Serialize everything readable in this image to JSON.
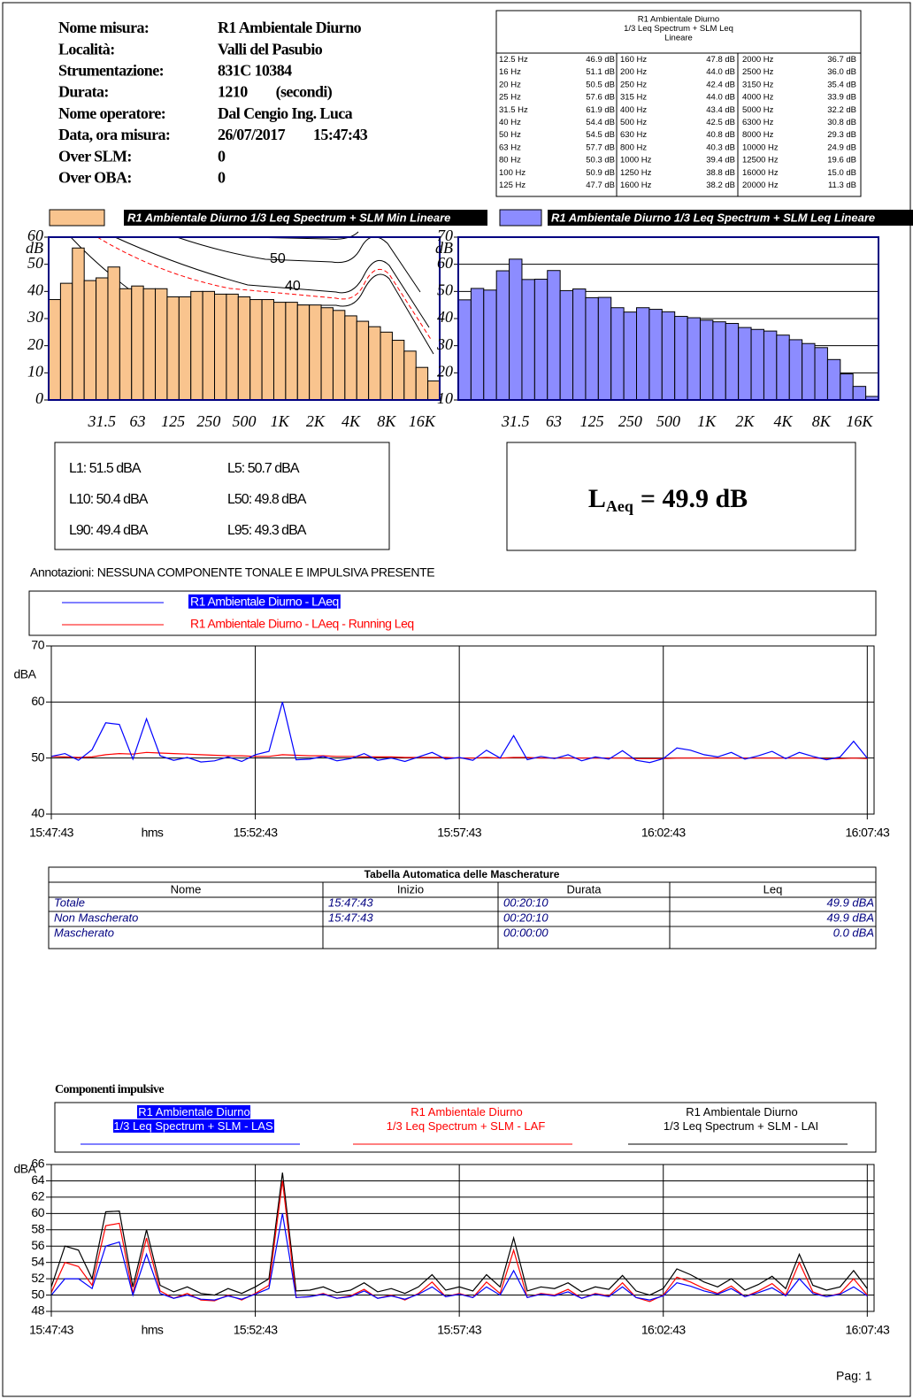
{
  "header": {
    "fields": [
      {
        "label": "Nome misura:",
        "value": "R1 Ambientale Diurno"
      },
      {
        "label": "Località:",
        "value": "Valli del Pasubio"
      },
      {
        "label": "Strumentazione:",
        "value": "831C 10384"
      },
      {
        "label": "Durata:",
        "value": "1210",
        "extra": "(secondi)"
      },
      {
        "label": "Nome operatore:",
        "value": "Dal Cengio Ing. Luca"
      },
      {
        "label": "Data, ora misura:",
        "value": "26/07/2017",
        "extra": "15:47:43"
      },
      {
        "label": "Over SLM:",
        "value": "0"
      },
      {
        "label": "Over OBA:",
        "value": "0"
      }
    ]
  },
  "spectrum_table": {
    "title": [
      "R1 Ambientale Diurno",
      "1/3 Leq Spectrum + SLM Leq",
      "Lineare"
    ],
    "rows": [
      [
        "12.5 Hz",
        "46.9 dB",
        "160 Hz",
        "47.8 dB",
        "2000 Hz",
        "36.7 dB"
      ],
      [
        "16 Hz",
        "51.1 dB",
        "200 Hz",
        "44.0 dB",
        "2500 Hz",
        "36.0 dB"
      ],
      [
        "20 Hz",
        "50.5 dB",
        "250 Hz",
        "42.4 dB",
        "3150 Hz",
        "35.4 dB"
      ],
      [
        "25 Hz",
        "57.6 dB",
        "315 Hz",
        "44.0 dB",
        "4000 Hz",
        "33.9 dB"
      ],
      [
        "31.5 Hz",
        "61.9 dB",
        "400 Hz",
        "43.4 dB",
        "5000 Hz",
        "32.2 dB"
      ],
      [
        "40 Hz",
        "54.4 dB",
        "500 Hz",
        "42.5 dB",
        "6300 Hz",
        "30.8 dB"
      ],
      [
        "50 Hz",
        "54.5 dB",
        "630 Hz",
        "40.8 dB",
        "8000 Hz",
        "29.3 dB"
      ],
      [
        "63 Hz",
        "57.7 dB",
        "800 Hz",
        "40.3 dB",
        "10000 Hz",
        "24.9 dB"
      ],
      [
        "80 Hz",
        "50.3 dB",
        "1000 Hz",
        "39.4 dB",
        "12500 Hz",
        "19.6 dB"
      ],
      [
        "100 Hz",
        "50.9 dB",
        "1250 Hz",
        "38.8 dB",
        "16000 Hz",
        "15.0 dB"
      ],
      [
        "125 Hz",
        "47.7 dB",
        "1600 Hz",
        "38.2 dB",
        "20000 Hz",
        "11.3 dB"
      ]
    ]
  },
  "stats": [
    [
      "L1: 51.5 dBA",
      "L5: 50.7 dBA"
    ],
    [
      "L10: 50.4 dBA",
      "L50: 49.8 dBA"
    ],
    [
      "L90: 49.4 dBA",
      "L95: 49.3 dBA"
    ]
  ],
  "laeq": {
    "symbol": "L",
    "subscript": "Aeq",
    "text": "= 49.9 dB"
  },
  "annotation": "Annotazioni: NESSUNA COMPONENTE TONALE E IMPULSIVA PRESENTE",
  "mask_table": {
    "title": "Tabella Automatica delle Mascherature",
    "headers": [
      "Nome",
      "Inizio",
      "Durata",
      "Leq"
    ],
    "rows": [
      [
        "Totale",
        "15:47:43",
        "00:20:10",
        "49.9 dBA"
      ],
      [
        "Non Mascherato",
        "15:47:43",
        "00:20:10",
        "49.9 dBA"
      ],
      [
        "Mascherato",
        null,
        "00:00:00",
        "0.0 dBA"
      ]
    ]
  },
  "section_title": "Componenti impulsive",
  "page": "Pag: 1",
  "chart_data": [
    {
      "type": "bar",
      "ylabel": "dB",
      "ylim": [
        0,
        60
      ],
      "yticks": [
        0,
        10,
        20,
        30,
        40,
        50,
        60
      ],
      "grid": false,
      "categories": [
        null,
        null,
        null,
        null,
        "31.5",
        null,
        null,
        "63",
        null,
        null,
        "125",
        null,
        null,
        "250",
        null,
        null,
        "500",
        null,
        null,
        "1K",
        null,
        null,
        "2K",
        null,
        null,
        "4K",
        null,
        null,
        "8K",
        null,
        null,
        "16K",
        null
      ],
      "annotations": [
        "50",
        "40"
      ],
      "series": [
        {
          "name": "R1 Ambientale Diurno 1/3 Leq Spectrum + SLM Min Lineare",
          "color": "#f9c48e",
          "values": [
            37,
            43,
            56,
            44,
            45,
            49,
            41,
            42,
            41,
            41,
            38,
            38,
            40,
            40,
            39,
            39,
            38,
            37,
            37,
            36,
            36,
            35,
            35,
            34,
            33,
            31,
            29,
            27,
            25,
            22,
            18,
            12,
            7
          ]
        }
      ]
    },
    {
      "type": "bar",
      "ylabel": "dB",
      "ylim": [
        10,
        70
      ],
      "yticks": [
        10,
        20,
        30,
        40,
        50,
        60,
        70
      ],
      "grid": true,
      "categories": [
        null,
        null,
        null,
        null,
        "31.5",
        null,
        null,
        "63",
        null,
        null,
        "125",
        null,
        null,
        "250",
        null,
        null,
        "500",
        null,
        null,
        "1K",
        null,
        null,
        "2K",
        null,
        null,
        "4K",
        null,
        null,
        "8K",
        null,
        null,
        "16K",
        null
      ],
      "series": [
        {
          "name": "R1 Ambientale Diurno 1/3 Leq Spectrum + SLM Leq Lineare",
          "color": "#8c8cff",
          "values": [
            46.9,
            51.1,
            50.5,
            57.6,
            61.9,
            54.4,
            54.5,
            57.7,
            50.3,
            50.9,
            47.7,
            47.8,
            44.0,
            42.4,
            44.0,
            43.4,
            42.5,
            40.8,
            40.3,
            39.4,
            38.8,
            38.2,
            36.7,
            36.0,
            35.4,
            33.9,
            32.2,
            30.8,
            29.3,
            24.9,
            19.6,
            15.0,
            11.3
          ]
        }
      ]
    },
    {
      "type": "line",
      "ylabel": "dBA",
      "xlabel": "hms",
      "ylim": [
        40,
        70
      ],
      "yticks": [
        40,
        50,
        60,
        70
      ],
      "grid": true,
      "legend_highlight": 0,
      "xlim": [
        0,
        1210
      ],
      "xticks": [
        {
          "value": 0,
          "label": "15:47:43"
        },
        {
          "value": 300,
          "label": "15:52:43"
        },
        {
          "value": 600,
          "label": "15:57:43"
        },
        {
          "value": 900,
          "label": "16:02:43"
        },
        {
          "value": 1200,
          "label": "16:07:43"
        }
      ],
      "x": [
        0,
        20,
        40,
        60,
        80,
        100,
        120,
        140,
        160,
        180,
        200,
        220,
        240,
        260,
        280,
        300,
        320,
        340,
        360,
        380,
        400,
        420,
        440,
        460,
        480,
        500,
        520,
        540,
        560,
        580,
        600,
        620,
        640,
        660,
        680,
        700,
        720,
        740,
        760,
        780,
        800,
        820,
        840,
        860,
        880,
        900,
        920,
        940,
        960,
        980,
        1000,
        1020,
        1040,
        1060,
        1080,
        1100,
        1120,
        1140,
        1160,
        1180,
        1200
      ],
      "series": [
        {
          "name": "R1 Ambientale Diurno - LAeq",
          "color": "#0000ff",
          "values": [
            50.3,
            50.8,
            49.6,
            51.5,
            56.3,
            56.0,
            49.8,
            57.0,
            50.4,
            49.6,
            50.1,
            49.3,
            49.5,
            50.2,
            49.4,
            50.6,
            51.2,
            60.0,
            49.7,
            49.8,
            50.3,
            49.5,
            49.9,
            50.8,
            49.6,
            50.0,
            49.4,
            50.2,
            51.0,
            49.8,
            50.1,
            49.6,
            51.4,
            50.0,
            54.0,
            49.7,
            50.3,
            49.9,
            50.6,
            49.5,
            50.2,
            49.8,
            51.3,
            49.6,
            49.2,
            49.9,
            51.8,
            51.4,
            50.6,
            50.2,
            51.0,
            49.8,
            50.4,
            51.2,
            49.9,
            51.0,
            50.3,
            49.7,
            50.2,
            53.0,
            50.0
          ]
        },
        {
          "name": "R1 Ambientale Diurno - LAeq - Running Leq",
          "color": "#ff0000",
          "values": [
            50.3,
            50.2,
            50.1,
            50.2,
            50.6,
            50.8,
            50.7,
            51.0,
            50.9,
            50.8,
            50.7,
            50.6,
            50.5,
            50.4,
            50.4,
            50.3,
            50.3,
            50.6,
            50.5,
            50.4,
            50.4,
            50.3,
            50.3,
            50.2,
            50.2,
            50.2,
            50.1,
            50.1,
            50.1,
            50.1,
            50.0,
            50.0,
            50.1,
            50.0,
            50.1,
            50.1,
            50.0,
            50.0,
            50.0,
            50.0,
            50.0,
            50.0,
            50.0,
            49.9,
            49.9,
            49.9,
            50.0,
            50.0,
            50.0,
            50.0,
            50.0,
            50.0,
            50.0,
            50.0,
            50.0,
            50.0,
            50.0,
            49.9,
            49.9,
            50.0,
            49.9
          ]
        }
      ]
    },
    {
      "type": "line",
      "ylabel": "dBA",
      "xlabel": "hms",
      "ylim": [
        48,
        66
      ],
      "yticks": [
        48,
        50,
        52,
        54,
        56,
        58,
        60,
        62,
        64,
        66
      ],
      "grid": true,
      "legend_highlight": 0,
      "xlim": [
        0,
        1210
      ],
      "xticks": [
        {
          "value": 0,
          "label": "15:47:43"
        },
        {
          "value": 300,
          "label": "15:52:43"
        },
        {
          "value": 600,
          "label": "15:57:43"
        },
        {
          "value": 900,
          "label": "16:02:43"
        },
        {
          "value": 1200,
          "label": "16:07:43"
        }
      ],
      "x": [
        0,
        20,
        40,
        60,
        80,
        100,
        120,
        140,
        160,
        180,
        200,
        220,
        240,
        260,
        280,
        300,
        320,
        340,
        360,
        380,
        400,
        420,
        440,
        460,
        480,
        500,
        520,
        540,
        560,
        580,
        600,
        620,
        640,
        660,
        680,
        700,
        720,
        740,
        760,
        780,
        800,
        820,
        840,
        860,
        880,
        900,
        920,
        940,
        960,
        980,
        1000,
        1020,
        1040,
        1060,
        1080,
        1100,
        1120,
        1140,
        1160,
        1180,
        1200
      ],
      "series": [
        {
          "name": "R1 Ambientale Diurno\n1/3 Leq Spectrum + SLM - LAS",
          "color": "#0000ff",
          "values": [
            50.0,
            52.0,
            52.0,
            50.8,
            56.0,
            56.5,
            50.0,
            55.0,
            50.2,
            49.6,
            50.0,
            49.5,
            49.4,
            49.9,
            49.5,
            50.1,
            50.8,
            60.0,
            49.7,
            49.8,
            50.1,
            49.6,
            49.8,
            50.5,
            49.6,
            49.9,
            49.5,
            50.1,
            51.0,
            49.8,
            50.1,
            49.7,
            51.0,
            50.0,
            53.0,
            49.7,
            50.1,
            49.9,
            50.4,
            49.6,
            50.1,
            49.8,
            51.0,
            49.7,
            49.4,
            49.9,
            51.5,
            51.1,
            50.5,
            50.1,
            50.8,
            49.8,
            50.3,
            50.9,
            49.9,
            52.0,
            50.2,
            49.8,
            50.1,
            51.0,
            49.9
          ]
        },
        {
          "name": "R1 Ambientale Diurno\n1/3 Leq Spectrum + SLM - LAF",
          "color": "#ff0000",
          "values": [
            50.3,
            54.0,
            53.5,
            51.2,
            58.5,
            58.8,
            50.2,
            57.0,
            50.5,
            49.6,
            50.2,
            49.4,
            49.3,
            50.0,
            49.4,
            50.2,
            51.2,
            64.0,
            49.7,
            49.8,
            50.2,
            49.6,
            49.9,
            50.7,
            49.6,
            50.0,
            49.4,
            50.2,
            51.6,
            49.8,
            50.2,
            49.7,
            51.6,
            50.2,
            55.5,
            49.7,
            50.2,
            50.0,
            50.7,
            49.6,
            50.2,
            49.9,
            51.5,
            49.7,
            49.2,
            50.0,
            52.2,
            51.6,
            50.8,
            50.2,
            51.1,
            49.8,
            50.5,
            51.4,
            50.0,
            54.0,
            50.4,
            49.8,
            50.2,
            52.0,
            50.0
          ]
        },
        {
          "name": "R1 Ambientale Diurno\n1/3 Leq Spectrum + SLM - LAI",
          "color": "#000000",
          "values": [
            51.0,
            56.0,
            55.5,
            52.0,
            60.2,
            60.3,
            51.0,
            58.0,
            51.2,
            50.4,
            51.0,
            50.2,
            50.0,
            50.8,
            50.2,
            51.0,
            52.0,
            65.0,
            50.5,
            50.6,
            51.0,
            50.3,
            50.6,
            51.5,
            50.4,
            50.8,
            50.2,
            51.0,
            52.5,
            50.6,
            51.0,
            50.5,
            52.5,
            51.0,
            57.0,
            50.5,
            51.0,
            50.8,
            51.5,
            50.4,
            51.0,
            50.7,
            52.4,
            50.5,
            50.0,
            50.8,
            53.2,
            52.5,
            51.6,
            51.0,
            52.0,
            50.6,
            51.3,
            52.3,
            50.8,
            55.0,
            51.2,
            50.6,
            51.0,
            53.0,
            50.8
          ]
        }
      ]
    }
  ]
}
